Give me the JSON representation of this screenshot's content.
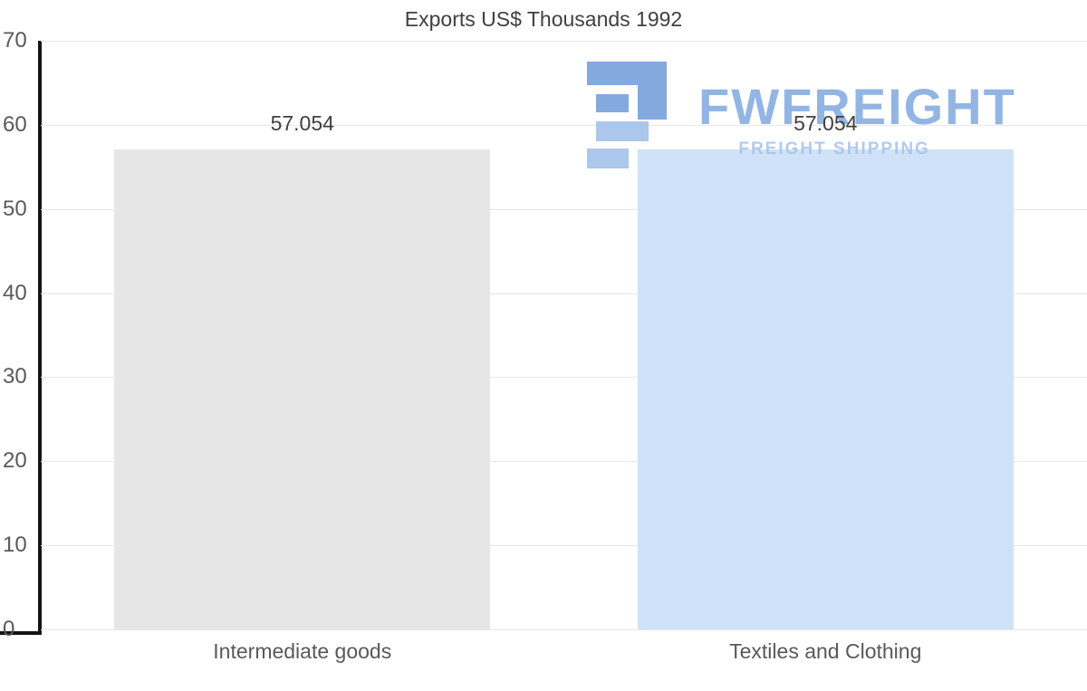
{
  "chart_data": {
    "type": "bar",
    "title": "Exports US$ Thousands 1992",
    "categories": [
      "Intermediate goods",
      "Textiles and Clothing"
    ],
    "values": [
      57.054,
      57.054
    ],
    "value_labels": [
      "57.054",
      "57.054"
    ],
    "ylim": [
      0,
      70
    ],
    "yticks": [
      0,
      10,
      20,
      30,
      40,
      50,
      60,
      70
    ],
    "grid": "horizontal",
    "legend": "none",
    "bar_colors": [
      "#e6e6e6",
      "#cfe2f7"
    ]
  },
  "watermark": {
    "brand": "FWFREIGHT",
    "tagline": "FREIGHT SHIPPING",
    "brand_color": "#7fa9e0",
    "tagline_color": "#a4c3ec"
  },
  "colors": {
    "title_text": "#404040",
    "axis_text": "#595959",
    "gridline": "#e7e7e7",
    "axis_line": "#141414",
    "background": "#ffffff"
  }
}
